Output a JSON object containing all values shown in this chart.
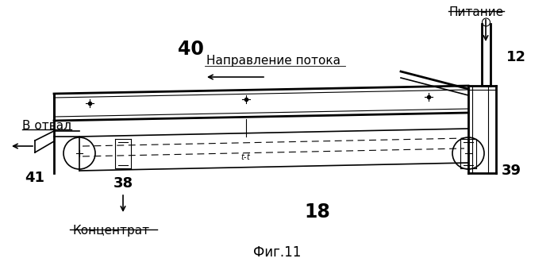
{
  "title": "Фиг.11",
  "labels": {
    "pitanie": "Питание",
    "v_otval": "В отвал",
    "kontsentrat": "Концентрат",
    "napravlenie": "Направление потока"
  },
  "numbers": {
    "n12": "12",
    "n18": "18",
    "n38": "38",
    "n39": "39",
    "n40": "40",
    "n41": "41"
  },
  "bg_color": "#ffffff",
  "line_color": "#000000"
}
